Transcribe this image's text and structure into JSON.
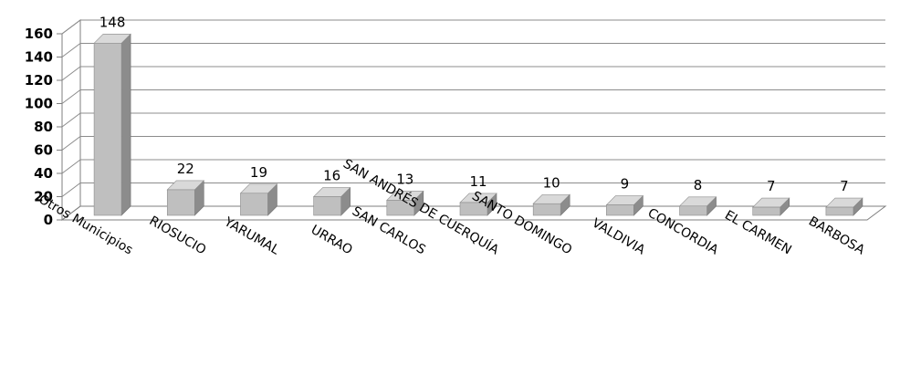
{
  "chart_data": {
    "type": "bar",
    "categories": [
      "Otros Municipios",
      "RIOSUCIO",
      "YARUMAL",
      "URRAO",
      "SAN CARLOS",
      "SAN ANDRÉS DE CUERQUÍA",
      "SANTO DOMINGO",
      "VALDIVIA",
      "CONCORDIA",
      "EL CARMEN",
      "BARBOSA"
    ],
    "values": [
      148,
      22,
      19,
      16,
      13,
      11,
      10,
      9,
      8,
      7,
      7
    ],
    "ylim": [
      0,
      160
    ],
    "yticks": [
      0,
      20,
      40,
      60,
      80,
      100,
      120,
      140,
      160
    ],
    "grid": true,
    "data_labels": true,
    "style": "3d-column"
  },
  "colors": {
    "bar_front": "#bfbfbf",
    "bar_top": "#d9d9d9",
    "bar_side": "#8c8c8c",
    "grid": "#8c8c8c",
    "axis": "#7f7f7f"
  }
}
